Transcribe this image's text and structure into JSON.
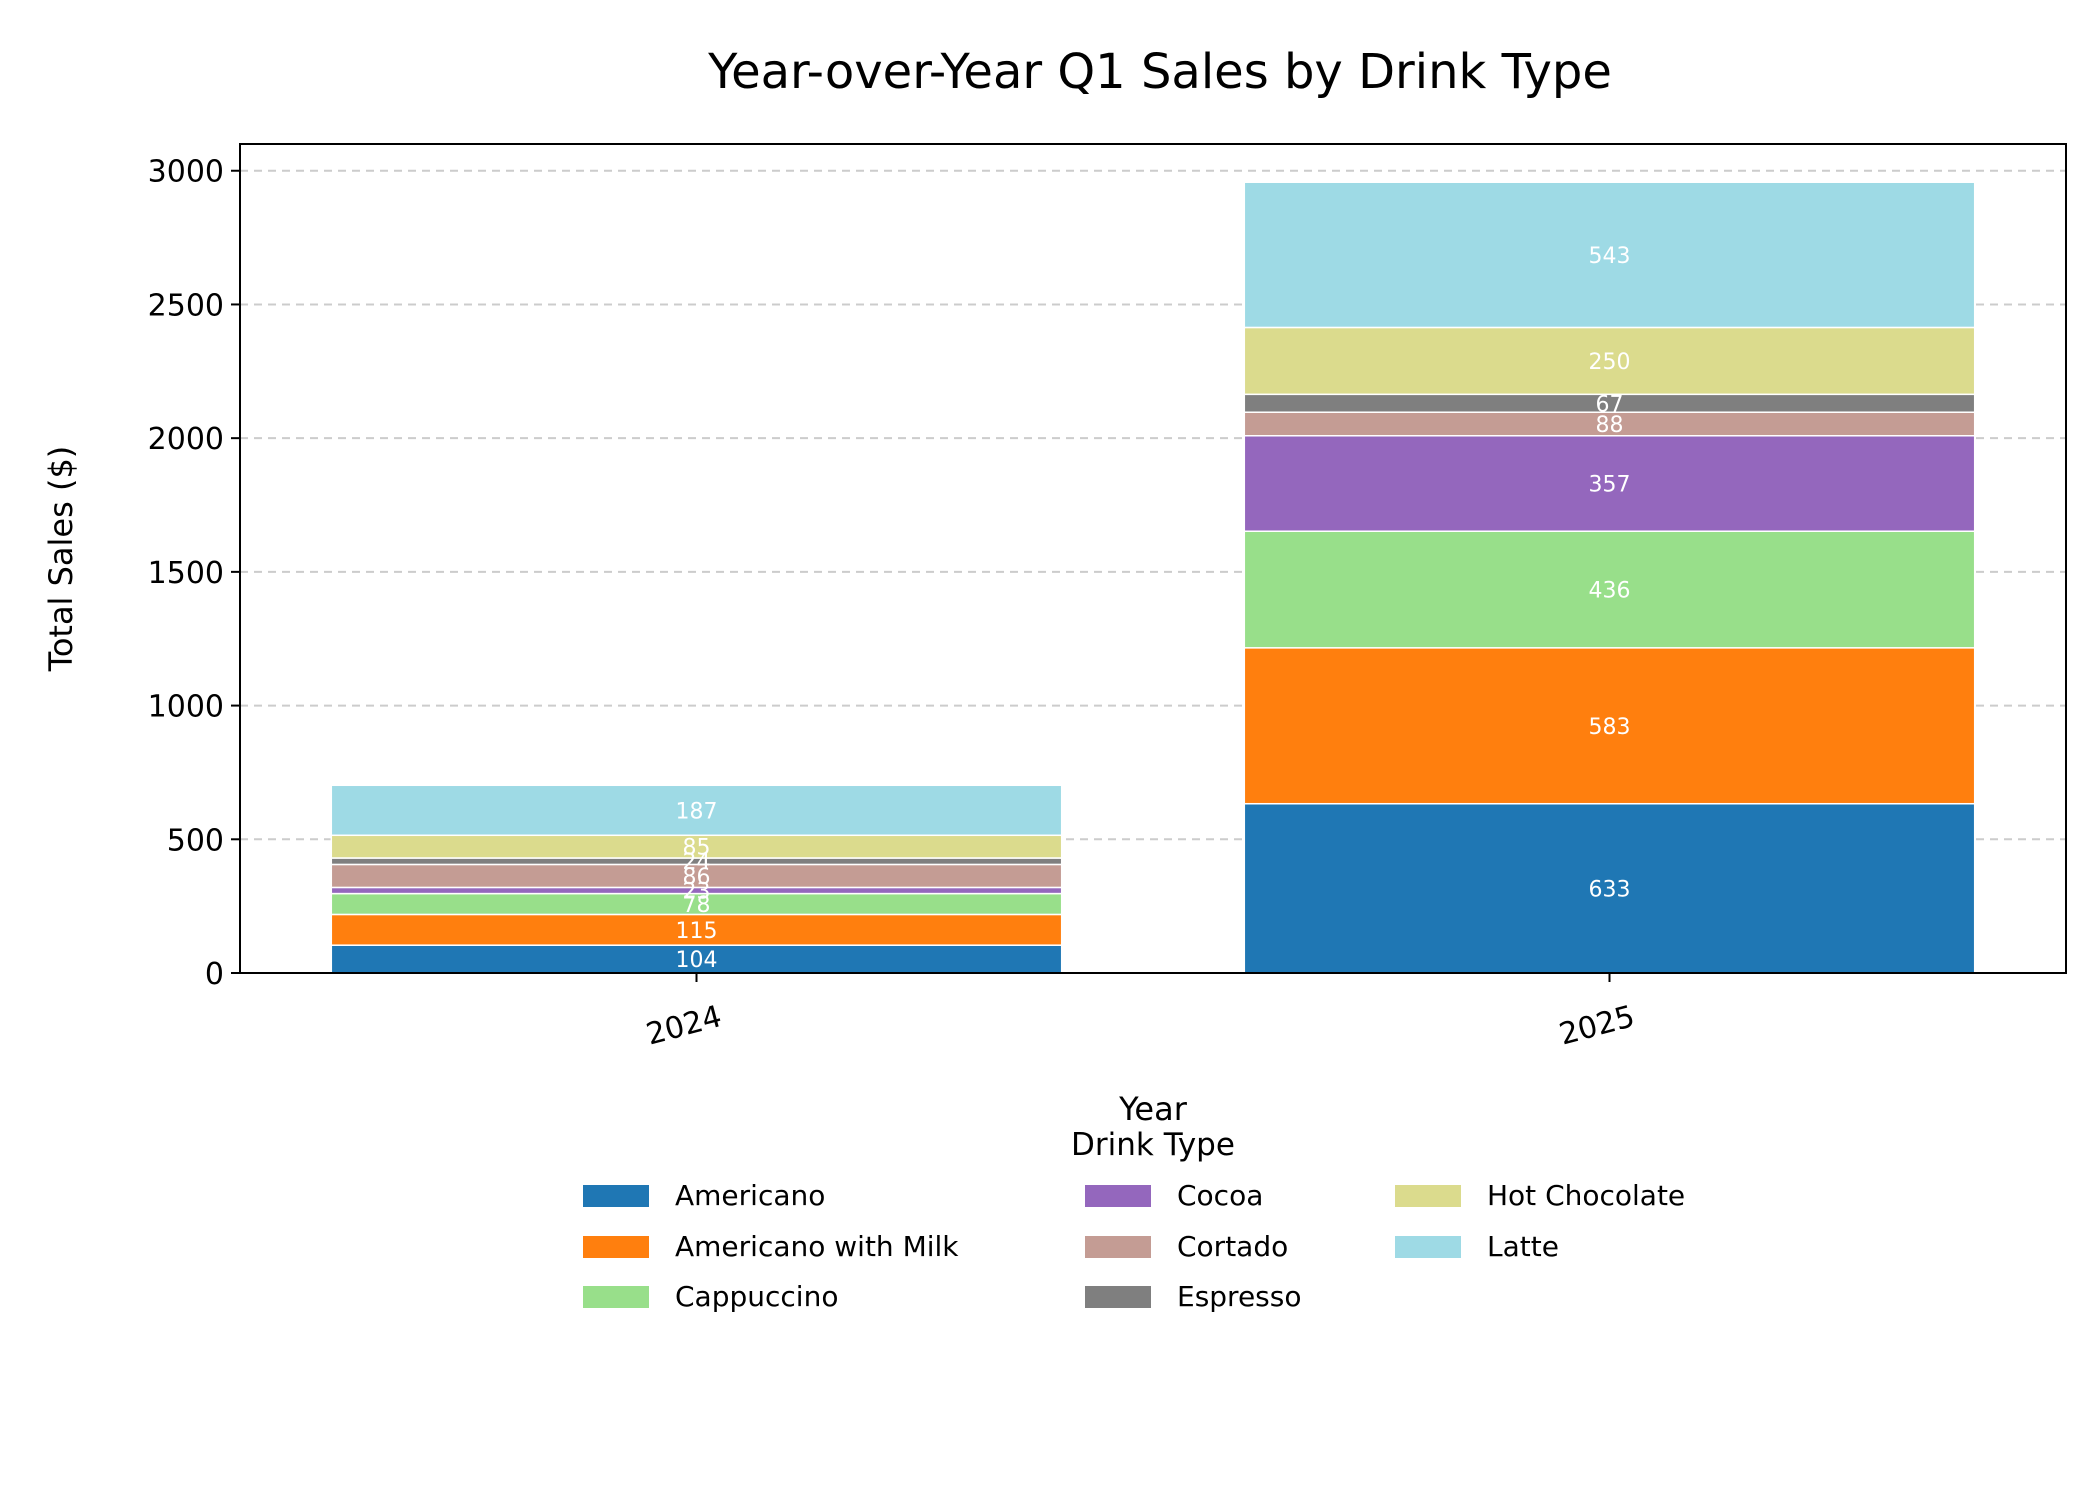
{
  "chart_data": {
    "type": "bar",
    "stacked": true,
    "title": "Year-over-Year Q1 Sales by Drink Type",
    "xlabel": "Year",
    "ylabel": "Total Sales ($)",
    "categories": [
      "2024",
      "2025"
    ],
    "ylim": [
      0,
      3100
    ],
    "yticks": [
      0,
      500,
      1000,
      1500,
      2000,
      2500,
      3000
    ],
    "grid": "y-dashed",
    "legend": {
      "title": "Drink Type",
      "placement": "bottom-center",
      "columns": 3
    },
    "series": [
      {
        "name": "Americano",
        "values": [
          104,
          633
        ],
        "color": "#1f77b4"
      },
      {
        "name": "Americano with Milk",
        "values": [
          115,
          583
        ],
        "color": "#ff7f0e"
      },
      {
        "name": "Cappuccino",
        "values": [
          78,
          436
        ],
        "color": "#98df8a"
      },
      {
        "name": "Cocoa",
        "values": [
          23,
          357
        ],
        "color": "#9467bd"
      },
      {
        "name": "Cortado",
        "values": [
          86,
          88
        ],
        "color": "#c49c94"
      },
      {
        "name": "Espresso",
        "values": [
          24,
          67
        ],
        "color": "#7f7f7f"
      },
      {
        "name": "Hot Chocolate",
        "values": [
          85,
          250
        ],
        "color": "#dbdb8d"
      },
      {
        "name": "Latte",
        "values": [
          187,
          543
        ],
        "color": "#9edae5"
      }
    ]
  }
}
